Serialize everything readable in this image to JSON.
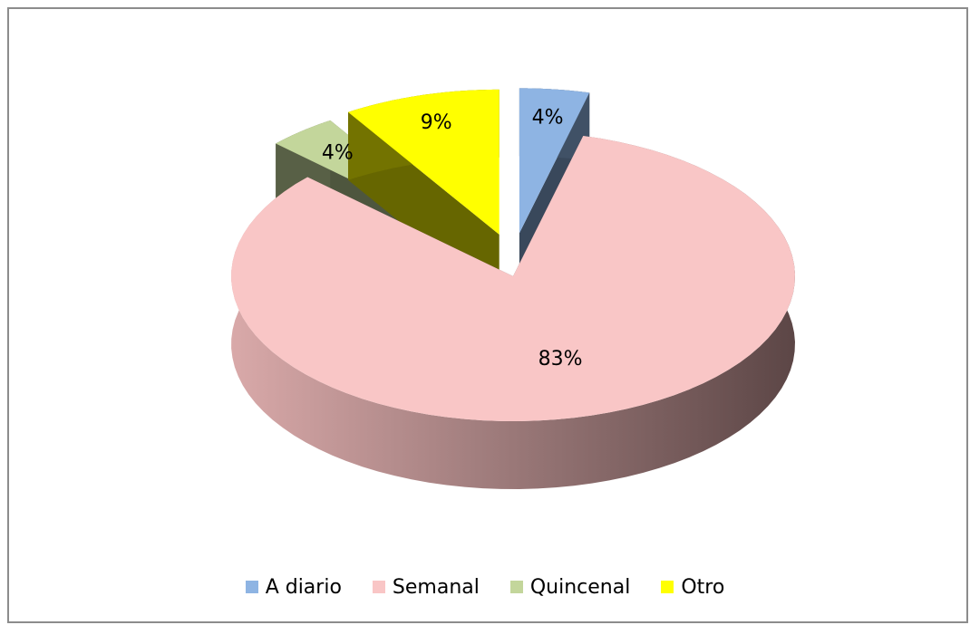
{
  "chart_data": {
    "type": "pie",
    "categories": [
      "A diario",
      "Semanal",
      "Quincenal",
      "Otro"
    ],
    "values": [
      4,
      83,
      4,
      9
    ],
    "value_labels": [
      "4%",
      "83%",
      "4%",
      "9%"
    ],
    "colors": [
      "#8eb4e3",
      "#f9c6c6",
      "#c3d69b",
      "#ffff00"
    ],
    "exploded": [
      true,
      false,
      true,
      true
    ],
    "legend": "bottom"
  }
}
